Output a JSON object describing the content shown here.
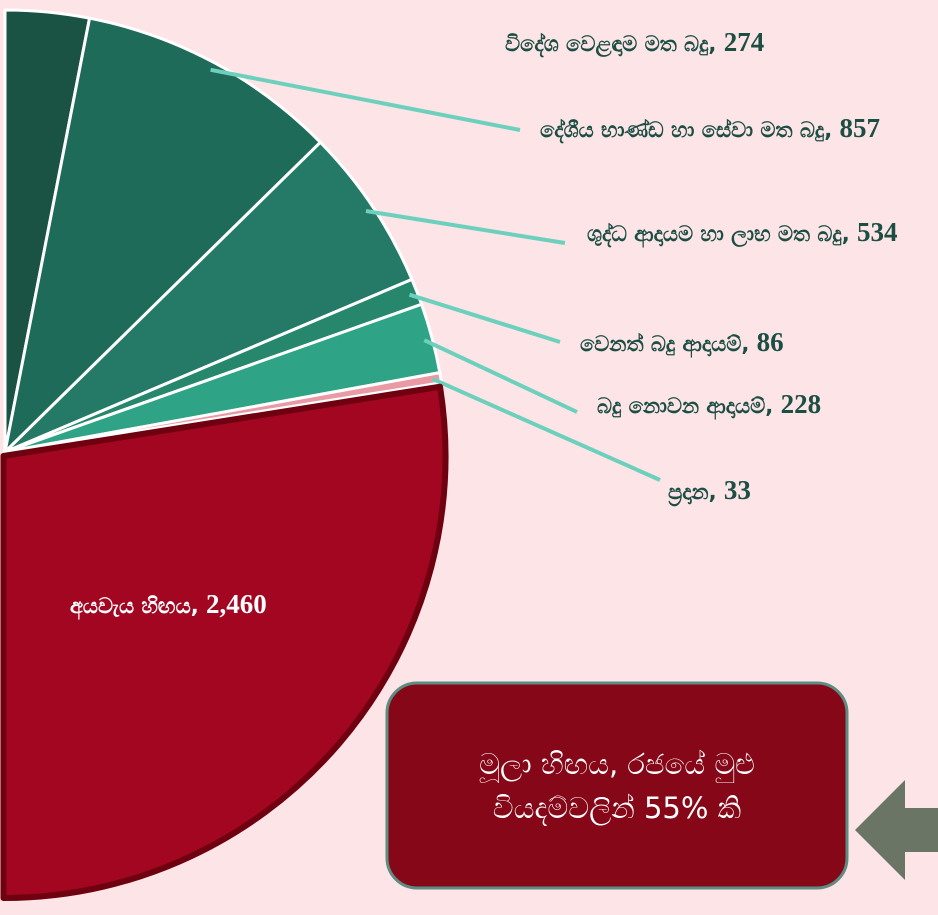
{
  "chart_data": {
    "type": "pie",
    "categories": [
      "විදේශ වෙළඳාම මත බදු",
      "දේශීය භාණ්ඩ හා සේවා මත බදු",
      "ශුද්ධ ආදායම හා ලාභ මත බදු",
      "වෙනත් බදු ආදායම්",
      "බදු නොවන ආදායම්",
      "ප්‍රදාන",
      "අයවැය හිඟය"
    ],
    "values": [
      274,
      857,
      534,
      86,
      228,
      33,
      2460
    ],
    "value_labels": [
      "274",
      "857",
      "534",
      "86",
      "228",
      "33",
      "2,460"
    ],
    "colors": [
      "#1a5244",
      "#1f6b5a",
      "#247a66",
      "#26876d",
      "#2fa385",
      "#e99aa4",
      "#a30621"
    ],
    "annotation": [
      "මූලා හිඟය, රජයේ මුළු",
      "වියදම්වලින් 55% කි"
    ]
  }
}
